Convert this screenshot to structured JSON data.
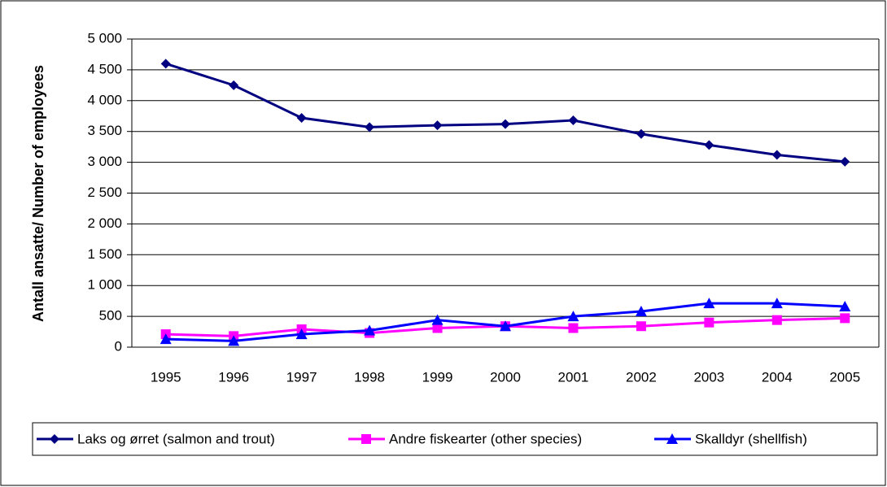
{
  "chart_data": {
    "type": "line",
    "y_label": "Antall ansatte/ Number of employees",
    "categories": [
      "1995",
      "1996",
      "1997",
      "1998",
      "1999",
      "2000",
      "2001",
      "2002",
      "2003",
      "2004",
      "2005"
    ],
    "series": [
      {
        "name": "Laks og ørret (salmon and trout)",
        "color": "#000080",
        "marker": "diamond",
        "values": [
          4600,
          4250,
          3720,
          3570,
          3600,
          3620,
          3680,
          3460,
          3280,
          3120,
          3010
        ]
      },
      {
        "name": "Andre fiskearter (other species)",
        "color": "#ff00ff",
        "marker": "square",
        "values": [
          210,
          180,
          290,
          230,
          310,
          340,
          310,
          340,
          400,
          440,
          470
        ]
      },
      {
        "name": "Skalldyr (shellfish)",
        "color": "#0000ff",
        "marker": "triangle",
        "values": [
          130,
          100,
          210,
          270,
          440,
          340,
          500,
          580,
          710,
          710,
          660
        ]
      }
    ],
    "ylim": [
      0,
      5000
    ],
    "yticks": [
      0,
      500,
      {
        "value": 1000,
        "label": "1 000"
      },
      {
        "value": 1500,
        "label": "1 500"
      },
      {
        "value": 2000,
        "label": "2 000"
      },
      {
        "value": 2500,
        "label": "2 500"
      },
      {
        "value": 3000,
        "label": "3 000"
      },
      {
        "value": 3500,
        "label": "3 500"
      },
      {
        "value": 4000,
        "label": "4 000"
      },
      {
        "value": 4500,
        "label": "4 500"
      },
      {
        "value": 5000,
        "label": "5 000"
      }
    ],
    "grid": true,
    "legend": "bottom"
  }
}
